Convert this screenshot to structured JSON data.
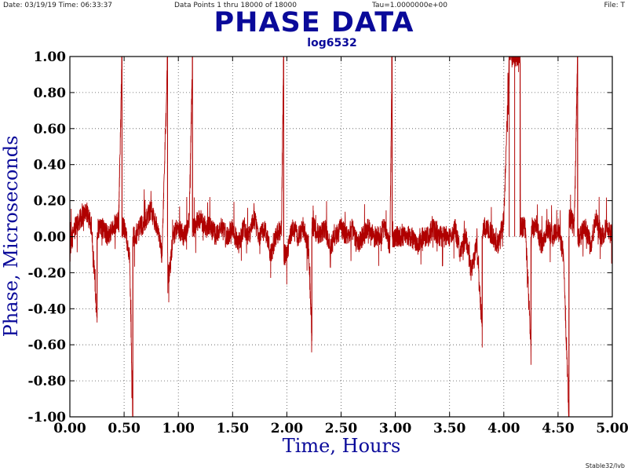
{
  "header": {
    "date_time": "Date: 03/19/19  Time: 06:33:37",
    "data_points": "Data Points 1 thru 18000 of 18000",
    "tau": "Tau=1.0000000e+00",
    "file": "File: T"
  },
  "footer": "Stable32/lvb",
  "chart_data": {
    "type": "line",
    "title": "PHASE DATA",
    "subtitle": "log6532",
    "xlabel": "Time,  Hours",
    "ylabel": "Phase,  Microseconds",
    "xlim": [
      0,
      5
    ],
    "ylim": [
      -1,
      1
    ],
    "x_ticks": [
      0.0,
      0.5,
      1.0,
      1.5,
      2.0,
      2.5,
      3.0,
      3.5,
      4.0,
      4.5,
      5.0
    ],
    "x_tick_labels": [
      "0.00",
      "0.50",
      "1.00",
      "1.50",
      "2.00",
      "2.50",
      "3.00",
      "3.50",
      "4.00",
      "4.50",
      "5.00"
    ],
    "y_ticks": [
      1.0,
      0.8,
      0.6,
      0.4,
      0.2,
      0.0,
      -0.2,
      -0.4,
      -0.6,
      -0.8,
      -1.0
    ],
    "y_tick_labels": [
      "1.00",
      "0.80",
      "0.60",
      "0.40",
      "0.20",
      "0.00",
      "-0.20",
      "-0.40",
      "-0.60",
      "-0.80",
      "-1.00"
    ],
    "grid": true,
    "line_color": "#b00000",
    "series": [
      {
        "x": [
          0.0,
          0.05,
          0.1,
          0.15,
          0.2,
          0.25,
          0.3,
          0.35,
          0.4,
          0.45,
          0.48,
          0.5,
          0.55,
          0.58,
          0.6,
          0.65,
          0.7,
          0.75,
          0.8,
          0.85,
          0.9,
          0.92,
          0.95,
          1.0,
          1.05,
          1.1,
          1.13,
          1.15,
          1.2,
          1.25,
          1.3,
          1.35,
          1.4,
          1.45,
          1.5,
          1.55,
          1.6,
          1.65,
          1.7,
          1.75,
          1.8,
          1.85,
          1.9,
          1.95,
          1.97,
          2.0,
          2.05,
          2.1,
          2.15,
          2.2,
          2.23,
          2.25,
          2.3,
          2.35,
          2.4,
          2.45,
          2.5,
          2.55,
          2.6,
          2.65,
          2.7,
          2.75,
          2.8,
          2.85,
          2.9,
          2.95,
          2.97,
          3.0,
          3.05,
          3.1,
          3.15,
          3.2,
          3.25,
          3.3,
          3.35,
          3.4,
          3.45,
          3.5,
          3.55,
          3.6,
          3.65,
          3.7,
          3.75,
          3.8,
          3.85,
          3.9,
          3.95,
          4.0,
          4.05,
          4.1,
          4.15,
          4.2,
          4.25,
          4.3,
          4.35,
          4.4,
          4.45,
          4.5,
          4.55,
          4.6,
          4.62,
          4.65,
          4.68,
          4.7,
          4.75,
          4.8,
          4.85,
          4.9,
          4.95,
          5.0
        ],
        "y": [
          -0.05,
          0.05,
          0.1,
          0.15,
          0.05,
          -0.45,
          0.05,
          0.0,
          0.05,
          0.1,
          1.0,
          0.05,
          -0.1,
          -1.0,
          0.0,
          0.05,
          0.1,
          0.15,
          0.05,
          -0.1,
          1.0,
          -0.2,
          0.0,
          0.05,
          0.0,
          0.1,
          1.0,
          0.05,
          0.1,
          0.05,
          0.05,
          0.0,
          0.05,
          0.0,
          0.05,
          -0.05,
          0.05,
          0.0,
          0.1,
          0.0,
          0.05,
          -0.1,
          0.0,
          0.05,
          1.0,
          -0.1,
          0.05,
          0.0,
          0.05,
          -0.05,
          -0.55,
          0.05,
          0.0,
          0.05,
          -0.05,
          0.0,
          0.05,
          0.0,
          0.05,
          -0.05,
          0.0,
          0.05,
          0.0,
          0.0,
          0.05,
          -0.05,
          1.0,
          0.0,
          0.0,
          0.0,
          0.0,
          -0.05,
          0.0,
          0.0,
          0.05,
          0.0,
          0.0,
          0.0,
          0.05,
          -0.1,
          0.0,
          -0.2,
          -0.05,
          -0.5,
          0.05,
          0.0,
          -0.05,
          0.1,
          1.0,
          1.0,
          1.0,
          0.05,
          -0.6,
          0.05,
          -0.05,
          0.05,
          0.0,
          0.05,
          -0.1,
          -1.0,
          0.1,
          0.05,
          1.0,
          0.0,
          0.05,
          -0.05,
          0.1,
          0.0,
          0.05,
          0.0
        ]
      }
    ]
  }
}
